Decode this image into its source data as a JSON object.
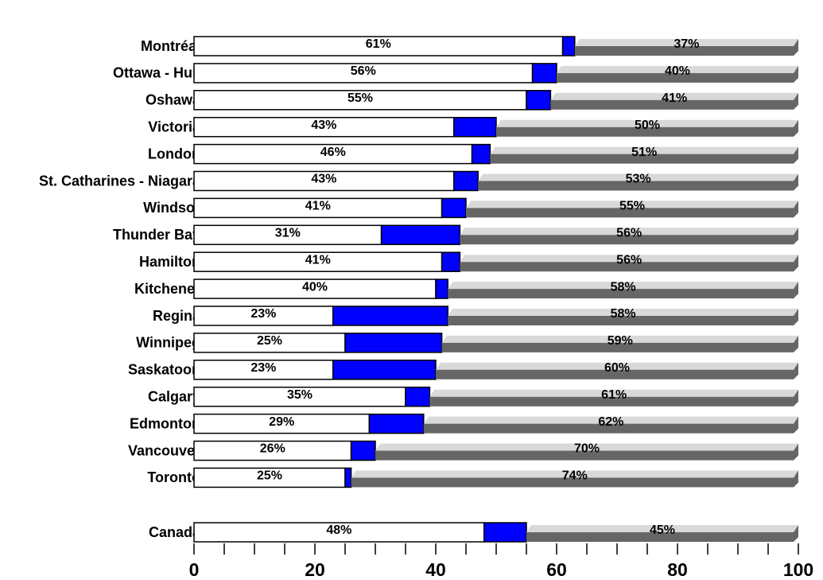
{
  "chart_data": {
    "type": "stacked-hbar",
    "categories": [
      "Montréal",
      "Ottawa - Hull",
      "Oshawa",
      "Victoria",
      "London",
      "St. Catharines - Niagara",
      "Windsor",
      "Thunder Bay",
      "Hamilton",
      "Kitchener",
      "Regina",
      "Winnipeg",
      "Saskatoon",
      "Calgary",
      "Edmonton",
      "Vancouver",
      "Toronto",
      "Canada"
    ],
    "series": [
      {
        "color": "#ffffff",
        "values": [
          61,
          56,
          55,
          43,
          46,
          43,
          41,
          31,
          41,
          40,
          23,
          25,
          23,
          35,
          29,
          26,
          25,
          48
        ],
        "value_labels": [
          "61%",
          "56%",
          "55%",
          "43%",
          "46%",
          "43%",
          "41%",
          "31%",
          "41%",
          "40%",
          "23%",
          "25%",
          "23%",
          "35%",
          "29%",
          "26%",
          "25%",
          "48%"
        ]
      },
      {
        "color": "#0000ff",
        "values": [
          2,
          4,
          4,
          7,
          3,
          4,
          4,
          13,
          3,
          2,
          19,
          16,
          17,
          4,
          9,
          4,
          1,
          7
        ]
      },
      {
        "color": "#666666",
        "values": [
          37,
          40,
          41,
          50,
          51,
          53,
          55,
          56,
          56,
          58,
          58,
          59,
          60,
          61,
          62,
          70,
          74,
          45
        ],
        "value_labels": [
          "37%",
          "40%",
          "41%",
          "50%",
          "51%",
          "53%",
          "55%",
          "56%",
          "56%",
          "58%",
          "58%",
          "59%",
          "60%",
          "61%",
          "62%",
          "70%",
          "74%",
          "45%"
        ]
      }
    ],
    "xlim": [
      0,
      100
    ],
    "xticks": [
      0,
      20,
      40,
      60,
      80,
      100
    ],
    "minor_xticks": [
      5,
      10,
      15,
      25,
      30,
      35,
      45,
      50,
      55,
      65,
      70,
      75,
      85,
      90,
      95
    ]
  }
}
